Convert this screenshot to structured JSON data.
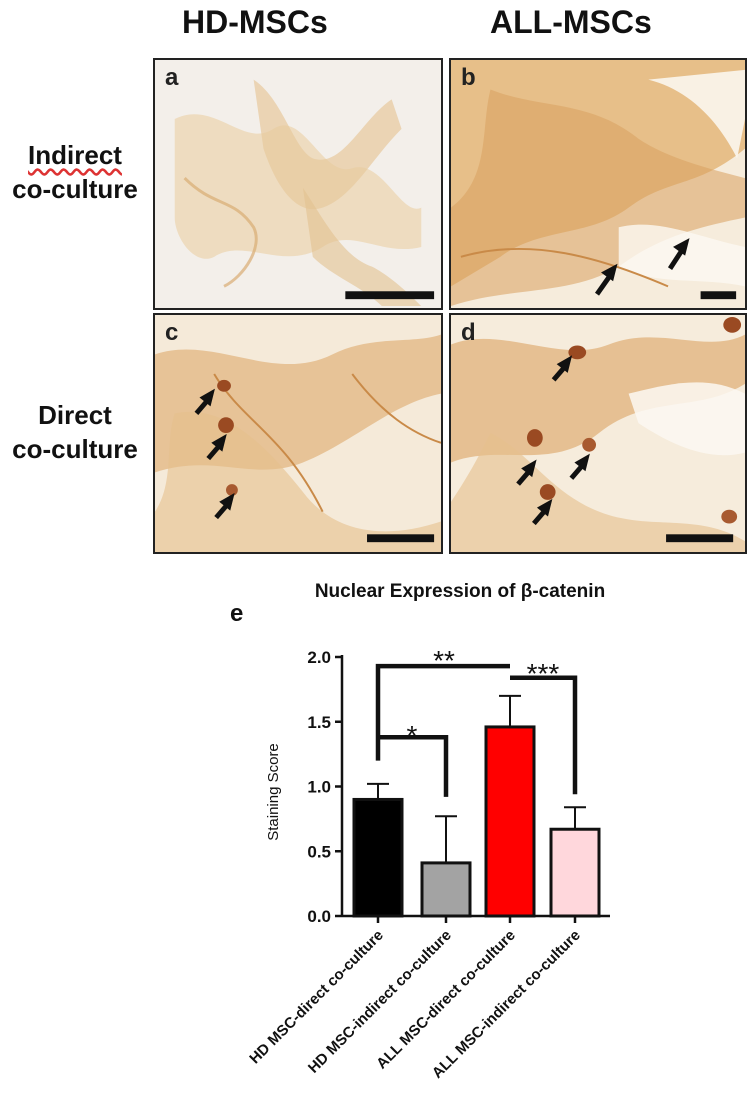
{
  "figure": {
    "column_titles": [
      "HD-MSCs",
      "ALL-MSCs"
    ],
    "row_titles": {
      "indirect": [
        "Indirect",
        "co-culture"
      ],
      "direct": [
        "Direct",
        "co-culture"
      ]
    },
    "panels": [
      {
        "letter": "a"
      },
      {
        "letter": "b"
      },
      {
        "letter": "c"
      },
      {
        "letter": "d"
      }
    ],
    "panel_e_letter": "e"
  },
  "colors": {
    "stain_light": "#f2e2c8",
    "stain_mid": "#dcae74",
    "stain_dark": "#c98a48",
    "nucleus": "#9a4a22"
  },
  "chart_data": {
    "type": "bar",
    "title": "Nuclear Expression of β-catenin",
    "ylabel": "Staining Score",
    "xlabel": "",
    "ylim": [
      0,
      2.0
    ],
    "yticks": [
      "0.0",
      "0.5",
      "1.0",
      "1.5",
      "2.0"
    ],
    "grid": false,
    "categories": [
      "HD MSC-direct co-culture",
      "HD MSC-indirect co-culture",
      "ALL MSC-direct co-culture",
      "ALL MSC-indirect co-culture"
    ],
    "values": [
      0.9,
      0.41,
      1.46,
      0.67
    ],
    "errors": [
      0.12,
      0.36,
      0.24,
      0.17
    ],
    "bar_colors": [
      "#000000",
      "#a3a3a3",
      "#ff0000",
      "#ffd7dc"
    ],
    "significance": [
      {
        "from": 0,
        "to": 1,
        "label": "*"
      },
      {
        "from": 0,
        "to": 2,
        "label": "**"
      },
      {
        "from": 2,
        "to": 3,
        "label": "***"
      }
    ]
  }
}
